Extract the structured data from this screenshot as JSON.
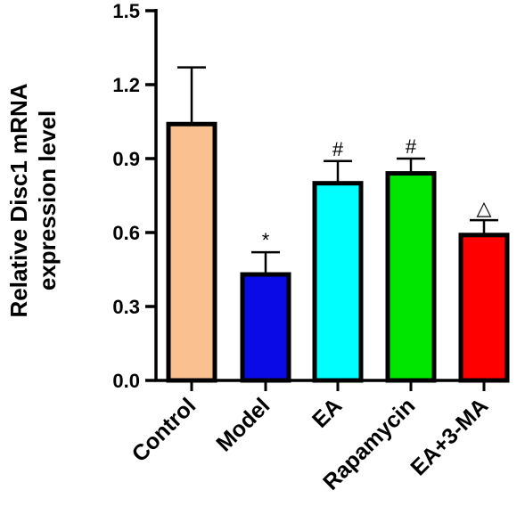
{
  "chart_data": {
    "type": "bar",
    "title": "",
    "ylabel_lines": [
      "Relative Disc1 mRNA",
      "expression level"
    ],
    "xlabel": "",
    "ylim": [
      0,
      1.5
    ],
    "yticks": [
      0.0,
      0.3,
      0.6,
      0.9,
      1.2,
      1.5
    ],
    "ytick_labels": [
      "0.0",
      "0.3",
      "0.6",
      "0.9",
      "1.2",
      "1.5"
    ],
    "categories": [
      "Control",
      "Model",
      "EA",
      "Rapamycin",
      "EA+3-MA"
    ],
    "values": [
      1.04,
      0.43,
      0.8,
      0.84,
      0.59
    ],
    "errors": [
      0.23,
      0.09,
      0.09,
      0.06,
      0.06
    ],
    "colors": [
      "#fac090",
      "#0a0ae6",
      "#00ffff",
      "#00e600",
      "#ff0000"
    ],
    "annotations": [
      "",
      "*",
      "#",
      "#",
      "△"
    ],
    "grid": false,
    "legend": "none"
  }
}
